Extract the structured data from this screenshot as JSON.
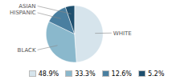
{
  "chart_data": {
    "type": "pie",
    "categories": [
      "WHITE",
      "BLACK",
      "HISPANIC",
      "ASIAN"
    ],
    "values": [
      48.9,
      33.3,
      12.6,
      5.2
    ],
    "value_labels": [
      "48.9%",
      "33.3%",
      "12.6%",
      "5.2%"
    ],
    "colors": [
      "#d6e4ec",
      "#8ab8cc",
      "#4a7fa0",
      "#1e4f6e"
    ],
    "legend": "bottom"
  }
}
